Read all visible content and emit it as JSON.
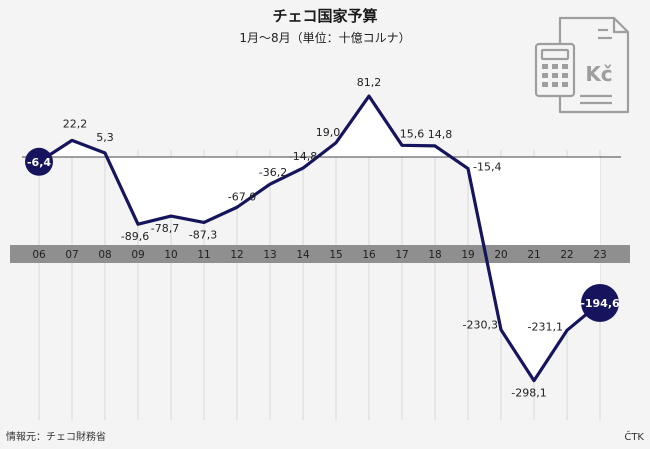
{
  "chart_data": {
    "type": "area",
    "title": "チェコ国家予算",
    "subtitle": "1月〜8月（単位：十億コルナ）",
    "xlabel": "",
    "ylabel": "",
    "categories": [
      "06",
      "07",
      "08",
      "09",
      "10",
      "11",
      "12",
      "13",
      "14",
      "15",
      "16",
      "17",
      "18",
      "19",
      "20",
      "21",
      "22",
      "23"
    ],
    "series": [
      {
        "values": [
          -6.4,
          22.2,
          5.3,
          -89.6,
          -78.7,
          -87.3,
          -67.0,
          -36.2,
          -14.8,
          19.0,
          81.2,
          15.6,
          14.8,
          -15.4,
          -230.3,
          -298.1,
          -231.1,
          -194.6
        ]
      }
    ],
    "value_labels": [
      "-6,4",
      "22,2",
      "5,3",
      "-89,6",
      "-78,7",
      "-87,3",
      "-67,0",
      "-36,2",
      "-14,8",
      "19,0",
      "81,2",
      "15,6",
      "14,8",
      "-15,4",
      "-230,3",
      "-298,1",
      "-231,1",
      "-194,6"
    ],
    "ylim": [
      -330,
      100
    ],
    "grid": "vertical",
    "colors": {
      "line": "#15145c",
      "fill": "#ffffff",
      "axis_band": "#8f8f8f",
      "grid": "#d9d9d9",
      "background": "#f4f4f4"
    }
  },
  "footer": {
    "source": "情報元：チェコ財務省",
    "credit": "ČTK"
  },
  "icon": {
    "name": "budget-document-icon",
    "currency_text": "Kč"
  }
}
